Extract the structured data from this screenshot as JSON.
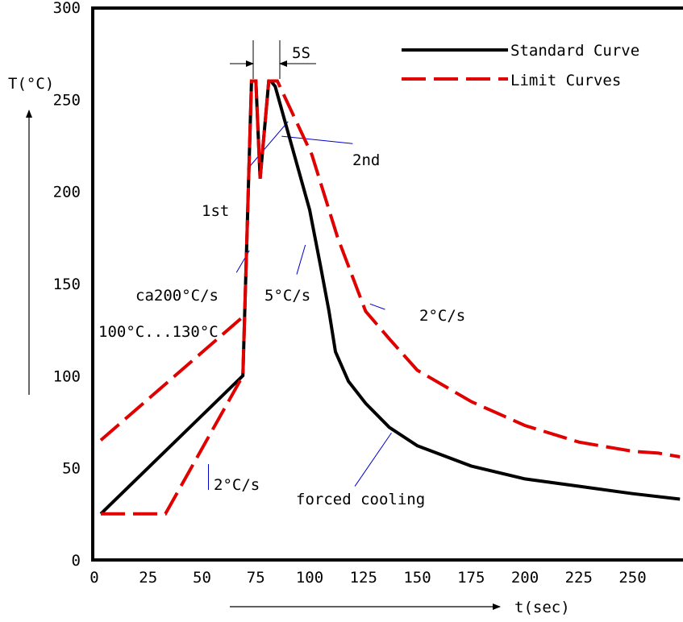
{
  "chart_data": {
    "type": "line",
    "title": "",
    "ylabel": "T(°C)",
    "xlabel": "t(sec)",
    "xlim": [
      0,
      272
    ],
    "ylim": [
      0,
      300
    ],
    "x_ticks": [
      0,
      25,
      50,
      75,
      100,
      125,
      150,
      175,
      200,
      225,
      250
    ],
    "y_ticks": [
      0,
      50,
      100,
      150,
      200,
      250,
      300
    ],
    "grid": false,
    "legend_position": "top-right",
    "series": [
      {
        "name": "Standard Curve",
        "color": "#000000",
        "style": "solid",
        "points": [
          [
            3,
            25
          ],
          [
            69,
            100
          ],
          [
            73,
            260
          ],
          [
            75,
            260
          ],
          [
            77,
            207
          ],
          [
            81,
            260
          ],
          [
            82,
            260
          ],
          [
            84,
            257
          ],
          [
            100,
            190
          ],
          [
            105,
            160
          ],
          [
            109,
            135
          ],
          [
            112,
            113
          ],
          [
            118,
            97
          ],
          [
            126,
            85
          ],
          [
            137,
            72
          ],
          [
            150,
            62
          ],
          [
            175,
            51
          ],
          [
            200,
            44
          ],
          [
            225,
            40
          ],
          [
            250,
            36
          ],
          [
            272,
            33
          ]
        ]
      },
      {
        "name": "Limit Curves",
        "color": "#e00000",
        "style": "dashed",
        "segments": [
          [
            [
              3,
              25
            ],
            [
              33,
              25
            ],
            [
              69,
              100
            ],
            [
              73,
              260
            ],
            [
              75,
              260
            ],
            [
              77,
              207
            ],
            [
              81,
              260
            ],
            [
              85,
              260
            ],
            [
              101,
              220
            ],
            [
              113,
              175
            ],
            [
              126,
              135
            ],
            [
              137,
              120
            ],
            [
              150,
              103
            ],
            [
              175,
              86
            ],
            [
              200,
              73
            ],
            [
              225,
              64
            ],
            [
              250,
              59
            ],
            [
              262,
              58
            ],
            [
              272,
              56
            ]
          ],
          [
            [
              3,
              65
            ],
            [
              70,
              133
            ]
          ]
        ]
      }
    ],
    "annotations": [
      {
        "text": "5S"
      },
      {
        "text": "1st"
      },
      {
        "text": "2nd"
      },
      {
        "text": "ca200°C/s"
      },
      {
        "text": "5°C/s"
      },
      {
        "text": "2°C/s"
      },
      {
        "text": "100°C...130°C"
      },
      {
        "text": "2°C/s"
      },
      {
        "text": "forced cooling"
      }
    ]
  }
}
